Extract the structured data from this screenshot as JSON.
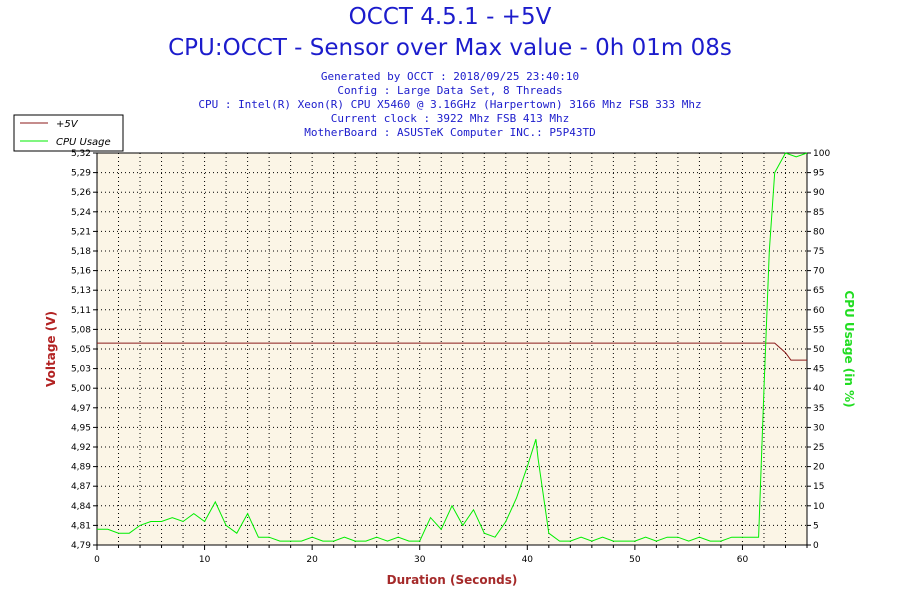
{
  "header": {
    "title": "OCCT 4.5.1 - +5V",
    "subtitle": "CPU:OCCT - Sensor over Max value - 0h 01m 08s",
    "info": [
      "Generated by OCCT : 2018/09/25 23:40:10",
      "Config : Large Data Set, 8 Threads",
      "CPU : Intel(R) Xeon(R) CPU X5460 @ 3.16GHz (Harpertown) 3166 Mhz FSB 333 Mhz",
      "Current clock : 3922 Mhz FSB 413 Mhz",
      "MotherBoard : ASUSTeK Computer INC.: P5P43TD"
    ]
  },
  "colors": {
    "voltage": "#8b1a1a",
    "cpu": "#00ee00",
    "plot_bg": "#fbf5e6",
    "text_blue": "#1c1ccc",
    "left_label": "#b22222",
    "right_label": "#22dd22",
    "bottom_label": "#a52a2a"
  },
  "chart_data": {
    "type": "line",
    "xlabel": "Duration (Seconds)",
    "ylabel_left": "Voltage (V)",
    "ylabel_right": "CPU Usage (in %)",
    "xlim": [
      0,
      66
    ],
    "x_ticks": [
      "0",
      "10",
      "20",
      "30",
      "40",
      "50",
      "60"
    ],
    "ylim_left": [
      4.79,
      5.32
    ],
    "y_left_ticks": [
      "4,79",
      "4,81",
      "4,84",
      "4,87",
      "4,89",
      "4,92",
      "4,95",
      "4,97",
      "5,00",
      "5,03",
      "5,05",
      "5,08",
      "5,11",
      "5,13",
      "5,16",
      "5,18",
      "5,21",
      "5,24",
      "5,26",
      "5,29",
      "5,32"
    ],
    "ylim_right": [
      0,
      100
    ],
    "y_right_ticks": [
      "0",
      "5",
      "10",
      "15",
      "20",
      "25",
      "30",
      "35",
      "40",
      "45",
      "50",
      "55",
      "60",
      "65",
      "70",
      "75",
      "80",
      "85",
      "90",
      "95",
      "100"
    ],
    "grid": true,
    "legend_position": "top-left",
    "series": [
      {
        "name": "+5V",
        "axis": "left",
        "x": [
          0,
          63,
          64,
          64.5,
          65,
          66
        ],
        "y": [
          5.063,
          5.063,
          5.05,
          5.04,
          5.04,
          5.04
        ]
      },
      {
        "name": "CPU Usage",
        "axis": "right",
        "x": [
          0,
          1,
          2,
          3,
          4,
          5,
          6,
          7,
          8,
          9,
          10,
          11,
          12,
          13,
          14,
          15,
          16,
          17,
          18,
          19,
          20,
          21,
          22,
          23,
          24,
          25,
          26,
          27,
          28,
          29,
          30,
          31,
          32,
          33,
          34,
          35,
          36,
          37,
          38,
          39,
          40,
          40.8,
          41,
          42,
          43,
          44,
          45,
          46,
          47,
          48,
          49,
          50,
          51,
          52,
          53,
          54,
          55,
          56,
          57,
          58,
          59,
          60,
          61,
          61.5,
          62,
          62.5,
          63,
          64,
          65,
          66
        ],
        "y": [
          4,
          4,
          3,
          3,
          5,
          6,
          6,
          7,
          6,
          8,
          6,
          11,
          5,
          3,
          8,
          2,
          2,
          1,
          1,
          1,
          2,
          1,
          1,
          2,
          1,
          1,
          2,
          1,
          2,
          1,
          1,
          7,
          4,
          10,
          5,
          9,
          3,
          2,
          6,
          12,
          20,
          27,
          22,
          3,
          1,
          1,
          2,
          1,
          2,
          1,
          1,
          1,
          2,
          1,
          2,
          2,
          1,
          2,
          1,
          1,
          2,
          2,
          2,
          2,
          40,
          75,
          95,
          100,
          99,
          100
        ]
      }
    ]
  }
}
